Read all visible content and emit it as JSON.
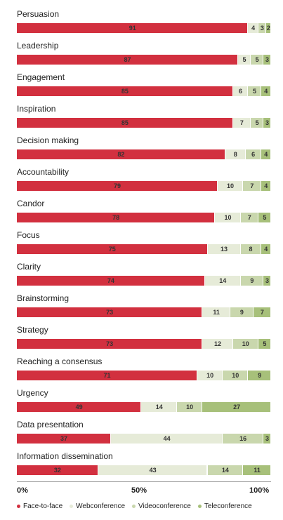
{
  "chart_data": {
    "type": "bar",
    "orientation": "horizontal",
    "stacked": true,
    "categories": [
      "Persuasion",
      "Leadership",
      "Engagement",
      "Inspiration",
      "Decision making",
      "Accountability",
      "Candor",
      "Focus",
      "Clarity",
      "Brainstorming",
      "Strategy",
      "Reaching a consensus",
      "Urgency",
      "Data presentation",
      "Information dissemination"
    ],
    "series": [
      {
        "name": "Face-to-face",
        "color": "#d2303f",
        "values": [
          91,
          87,
          85,
          85,
          82,
          79,
          78,
          75,
          74,
          73,
          73,
          71,
          49,
          37,
          32
        ]
      },
      {
        "name": "Webconference",
        "color": "#e6ebd8",
        "values": [
          4,
          5,
          6,
          7,
          8,
          10,
          10,
          13,
          14,
          11,
          12,
          10,
          14,
          44,
          43
        ]
      },
      {
        "name": "Videoconference",
        "color": "#c9d7ad",
        "values": [
          3,
          5,
          5,
          5,
          6,
          7,
          7,
          8,
          9,
          9,
          10,
          10,
          10,
          16,
          14
        ]
      },
      {
        "name": "Teleconference",
        "color": "#a7c07a",
        "values": [
          2,
          3,
          4,
          3,
          4,
          4,
          5,
          4,
          3,
          7,
          5,
          9,
          27,
          3,
          11
        ]
      }
    ],
    "xlim": [
      0,
      100
    ],
    "xticks": [
      "0%",
      "50%",
      "100%"
    ],
    "legend_position": "bottom"
  }
}
